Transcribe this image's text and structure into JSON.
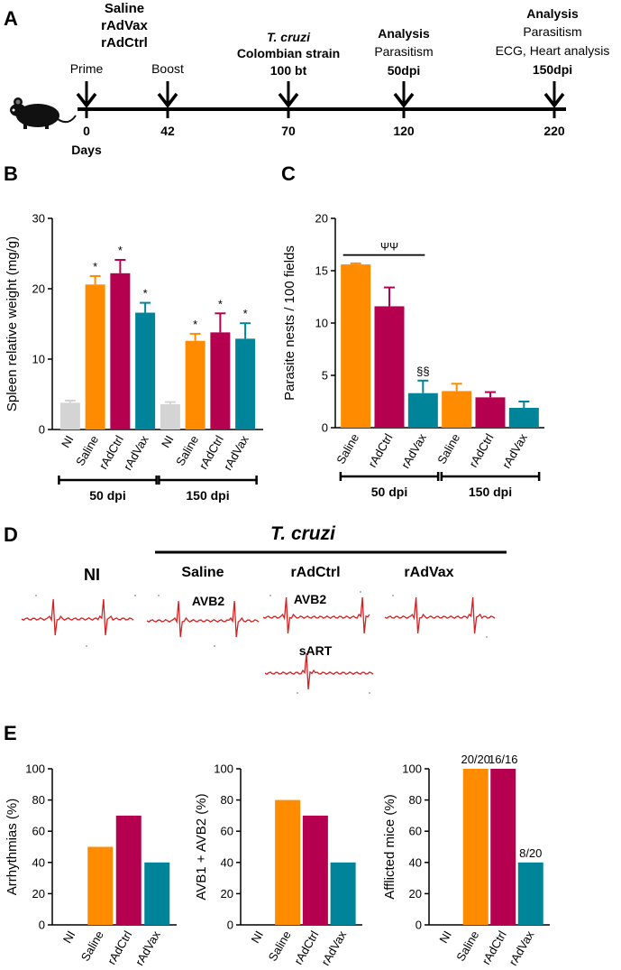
{
  "colors": {
    "ni": "#d4d4d4",
    "saline": "#ff8c00",
    "rAdCtrl": "#b5004f",
    "rAdVax": "#00849a",
    "red": "#cc1f1f",
    "blue": "#1a1aa6",
    "ecg": "#d42020"
  },
  "panel_a": {
    "label": "A",
    "days_label": "Days",
    "groups": [
      "Saline",
      "rAdVax",
      "rAdCtrl"
    ],
    "events": [
      {
        "day": "0",
        "label": "Prime"
      },
      {
        "day": "42",
        "label": "Boost"
      },
      {
        "day": "70",
        "infection_title": "T. cruzi",
        "infection_strain": "Colombian strain",
        "infection_dose": "100 bt"
      },
      {
        "day": "120",
        "analysis": "Analysis",
        "line1": "Parasitism",
        "dpi": "50dpi"
      },
      {
        "day": "220",
        "analysis": "Analysis",
        "line1": "Parasitism",
        "line2": "ECG, Heart analysis",
        "dpi": "150dpi"
      }
    ]
  },
  "chart_data": [
    {
      "panel": "B",
      "type": "bar",
      "ylabel": "Spleen relative weight (mg/g)",
      "ylim": [
        0,
        30
      ],
      "yticks": [
        "0",
        "10",
        "20",
        "30"
      ],
      "categories": [
        "NI",
        "Saline",
        "rAdCtrl",
        "rAdVax",
        "NI",
        "Saline",
        "rAdCtrl",
        "rAdVax"
      ],
      "groups": [
        "ni",
        "saline",
        "rAdCtrl",
        "rAdVax",
        "ni",
        "saline",
        "rAdCtrl",
        "rAdVax"
      ],
      "values": [
        3.8,
        20.6,
        22.2,
        16.6,
        3.6,
        12.6,
        13.8,
        12.9
      ],
      "errors": [
        0.3,
        1.2,
        1.9,
        1.4,
        0.3,
        1.0,
        2.7,
        2.2
      ],
      "annotations": [
        "",
        "*",
        "*",
        "*",
        "",
        "*",
        "*",
        "*"
      ],
      "brackets": [
        {
          "label": "50 dpi",
          "from": 0,
          "to": 3
        },
        {
          "label": "150 dpi",
          "from": 4,
          "to": 7
        }
      ]
    },
    {
      "panel": "C",
      "type": "bar",
      "ylabel": "Parasite nests / 100 fields",
      "ylim": [
        0,
        20
      ],
      "yticks": [
        "0",
        "5",
        "10",
        "15",
        "20"
      ],
      "categories": [
        "Saline",
        "rAdCtrl",
        "rAdVax",
        "Saline",
        "rAdCtrl",
        "rAdVax"
      ],
      "groups": [
        "saline",
        "rAdCtrl",
        "rAdVax",
        "saline",
        "rAdCtrl",
        "rAdVax"
      ],
      "values": [
        15.6,
        11.6,
        3.3,
        3.5,
        2.9,
        1.9
      ],
      "errors": [
        0.1,
        1.8,
        1.2,
        0.7,
        0.5,
        0.6
      ],
      "annotations": [
        "",
        "",
        "§§",
        "",
        "",
        ""
      ],
      "sig_line": {
        "label": "ΨΨ",
        "from": 0,
        "to": 2,
        "y": 16.5
      },
      "brackets": [
        {
          "label": "50 dpi",
          "from": 0,
          "to": 2
        },
        {
          "label": "150 dpi",
          "from": 3,
          "to": 5
        }
      ]
    },
    {
      "panel": "E1",
      "type": "bar",
      "ylabel": "Arrhythmias (%)",
      "ylim": [
        0,
        100
      ],
      "yticks": [
        "0",
        "20",
        "40",
        "60",
        "80",
        "100"
      ],
      "categories": [
        "NI",
        "Saline",
        "rAdCtrl",
        "rAdVax"
      ],
      "groups": [
        "ni",
        "saline",
        "rAdCtrl",
        "rAdVax"
      ],
      "values": [
        0,
        50,
        70,
        40
      ],
      "annotations": [
        "",
        "",
        "",
        ""
      ]
    },
    {
      "panel": "E2",
      "type": "bar",
      "ylabel": "AVB1 + AVB2 (%)",
      "ylim": [
        0,
        100
      ],
      "yticks": [
        "0",
        "20",
        "40",
        "60",
        "80",
        "100"
      ],
      "categories": [
        "NI",
        "Saline",
        "rAdCtrl",
        "rAdVax"
      ],
      "groups": [
        "ni",
        "saline",
        "rAdCtrl",
        "rAdVax"
      ],
      "values": [
        0,
        80,
        70,
        40
      ],
      "annotations": [
        "",
        "",
        "",
        ""
      ]
    },
    {
      "panel": "E3",
      "type": "bar",
      "ylabel": "Afflicted mice (%)",
      "ylim": [
        0,
        100
      ],
      "yticks": [
        "0",
        "20",
        "40",
        "60",
        "80",
        "100"
      ],
      "categories": [
        "NI",
        "Saline",
        "rAdCtrl",
        "rAdVax"
      ],
      "groups": [
        "ni",
        "saline",
        "rAdCtrl",
        "rAdVax"
      ],
      "values": [
        0,
        100,
        100,
        40
      ],
      "annotations": [
        "",
        "20/20",
        "16/16",
        "8/20"
      ]
    }
  ],
  "panel_d": {
    "label": "D",
    "infection": "T. cruzi",
    "columns": [
      "NI",
      "Saline",
      "rAdCtrl",
      "rAdVax"
    ],
    "trace_labels": [
      "AVB2",
      "AVB2",
      "sART"
    ]
  },
  "panel_labels": {
    "b": "B",
    "c": "C",
    "e": "E"
  }
}
